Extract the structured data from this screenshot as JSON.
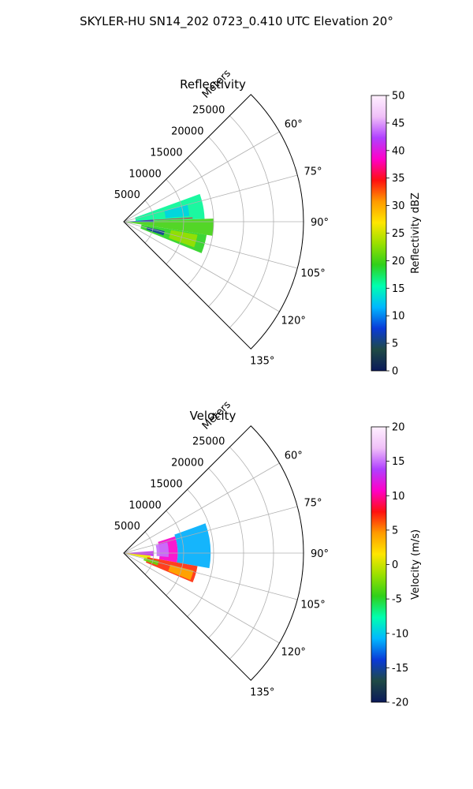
{
  "figure": {
    "suptitle": "SKYLER-HU  SN14_202  0723_0.410 UTC Elevation 20°"
  },
  "chart_data": [
    {
      "type": "heatmap",
      "projection": "polar-sector",
      "title": "Reflectivity",
      "radial_label": "Meters",
      "r_max": 30000,
      "r_ticks": [
        5000,
        10000,
        15000,
        20000,
        25000
      ],
      "azimuth_range_deg": [
        45,
        135
      ],
      "azimuth_ticks": [
        60,
        75,
        90,
        105,
        120,
        135
      ],
      "azimuth_tick_labels": [
        "60°",
        "75°",
        "90°",
        "105°",
        "120°",
        "135°"
      ],
      "grid": true,
      "colorbar": {
        "label": "Reflectivity dBZ",
        "vmin": 0,
        "vmax": 50,
        "ticks": [
          0,
          5,
          10,
          15,
          20,
          25,
          30,
          35,
          40,
          45,
          50
        ],
        "stops": [
          "#0b1a5a",
          "#1f4a45",
          "#0a3ad8",
          "#00b8ff",
          "#00ffb0",
          "#2fd01a",
          "#9ae000",
          "#ffe600",
          "#ff9a00",
          "#ff1010",
          "#ff00c8",
          "#b040ff",
          "#f0c0f8",
          "#fff0ff"
        ]
      },
      "echo_regions": [
        {
          "az_from": 70,
          "az_to": 88,
          "r_from": 2000,
          "r_to": 13500,
          "value": 16
        },
        {
          "az_from": 88,
          "az_to": 99,
          "r_from": 0,
          "r_to": 15000,
          "value": 20
        },
        {
          "az_from": 99,
          "az_to": 112,
          "r_from": 3000,
          "r_to": 14000,
          "value": 19
        },
        {
          "az_from": 100,
          "az_to": 110,
          "r_from": 8000,
          "r_to": 12500,
          "value": 23
        },
        {
          "az_from": 75,
          "az_to": 85,
          "r_from": 7000,
          "r_to": 11000,
          "value": 13
        },
        {
          "az_from": 86,
          "az_to": 91,
          "r_from": 1000,
          "r_to": 5000,
          "value": 8
        },
        {
          "az_from": 103,
          "az_to": 109,
          "r_from": 4000,
          "r_to": 7000,
          "value": 6
        },
        {
          "az_from": 86.5,
          "az_to": 87.2,
          "r_from": 3000,
          "r_to": 11500,
          "value": 35
        }
      ]
    },
    {
      "type": "heatmap",
      "projection": "polar-sector",
      "title": "Velocity",
      "radial_label": "Meters",
      "r_max": 30000,
      "r_ticks": [
        5000,
        10000,
        15000,
        20000,
        25000
      ],
      "azimuth_range_deg": [
        45,
        135
      ],
      "azimuth_ticks": [
        60,
        75,
        90,
        105,
        120,
        135
      ],
      "azimuth_tick_labels": [
        "60°",
        "75°",
        "90°",
        "105°",
        "120°",
        "135°"
      ],
      "grid": true,
      "colorbar": {
        "label": "Velocity (m/s)",
        "vmin": -20,
        "vmax": 20,
        "ticks": [
          -20,
          -15,
          -10,
          -5,
          0,
          5,
          10,
          15,
          20
        ],
        "stops": [
          "#0b1a5a",
          "#1f4a45",
          "#0a3ad8",
          "#00b8ff",
          "#00ffb0",
          "#2fd01a",
          "#9ae000",
          "#ffe600",
          "#ff9a00",
          "#ff1010",
          "#ff00c8",
          "#b040ff",
          "#f0c0f8",
          "#fff0ff"
        ]
      },
      "echo_regions": [
        {
          "az_from": 70,
          "az_to": 100,
          "r_from": 9000,
          "r_to": 14500,
          "value": -11
        },
        {
          "az_from": 72,
          "az_to": 100,
          "r_from": 6000,
          "r_to": 9000,
          "value": 11
        },
        {
          "az_from": 76,
          "az_to": 95,
          "r_from": 5500,
          "r_to": 7500,
          "value": 15
        },
        {
          "az_from": 86,
          "az_to": 96,
          "r_from": 500,
          "r_to": 5000,
          "value": 13
        },
        {
          "az_from": 95,
          "az_to": 103,
          "r_from": 0,
          "r_to": 4500,
          "value": 1
        },
        {
          "az_from": 100,
          "az_to": 113,
          "r_from": 4000,
          "r_to": 12500,
          "value": 7
        },
        {
          "az_from": 103,
          "az_to": 110,
          "r_from": 3500,
          "r_to": 6000,
          "value": -3
        },
        {
          "az_from": 104,
          "az_to": 112,
          "r_from": 8000,
          "r_to": 12000,
          "value": 4
        }
      ]
    }
  ]
}
